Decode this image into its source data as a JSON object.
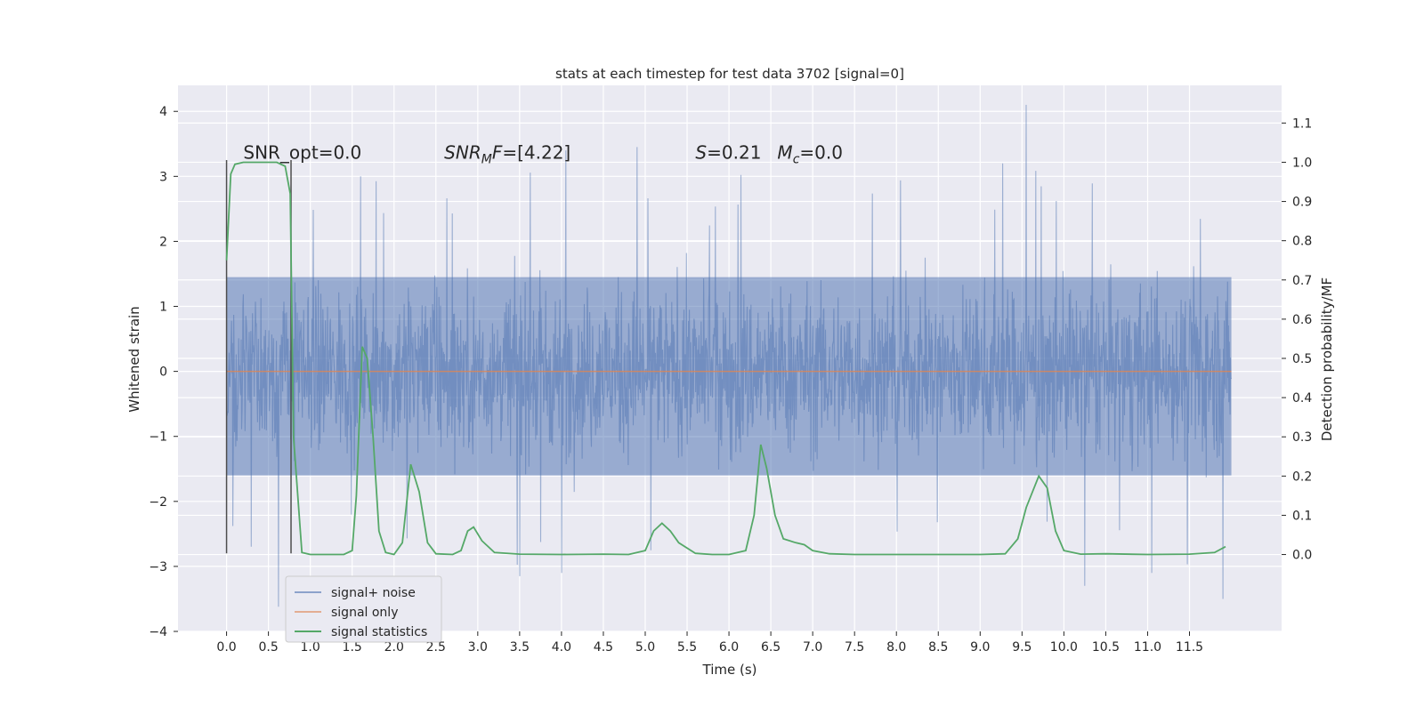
{
  "chart_data": {
    "type": "line",
    "title": "stats at each timestep for test data 3702 [signal=0]",
    "xlabel": "Time (s)",
    "ylabel": "Whitened strain",
    "y2label": "Detection probability/MF",
    "xlim": [
      -0.58,
      12.6
    ],
    "ylim": [
      -4.0,
      4.4
    ],
    "y2lim": [
      -0.196,
      1.196
    ],
    "x_ticks": [
      0.0,
      0.5,
      1.0,
      1.5,
      2.0,
      2.5,
      3.0,
      3.5,
      4.0,
      4.5,
      5.0,
      5.5,
      6.0,
      6.5,
      7.0,
      7.5,
      8.0,
      8.5,
      9.0,
      9.5,
      10.0,
      10.5,
      11.0,
      11.5
    ],
    "x_tick_labels": [
      "0.0",
      "0.5",
      "1.0",
      "1.5",
      "2.0",
      "2.5",
      "3.0",
      "3.5",
      "4.0",
      "4.5",
      "5.0",
      "5.5",
      "6.0",
      "6.5",
      "7.0",
      "7.5",
      "8.0",
      "8.5",
      "9.0",
      "9.5",
      "10.0",
      "10.5",
      "11.0",
      "11.5"
    ],
    "y_ticks": [
      -4,
      -3,
      -2,
      -1,
      0,
      1,
      2,
      3,
      4
    ],
    "y_tick_labels": [
      "−4",
      "−3",
      "−2",
      "−1",
      "0",
      "1",
      "2",
      "3",
      "4"
    ],
    "y2_ticks": [
      0.0,
      0.1,
      0.2,
      0.3,
      0.4,
      0.5,
      0.6,
      0.7,
      0.8,
      0.9,
      1.0,
      1.1
    ],
    "y2_tick_labels": [
      "0.0",
      "0.1",
      "0.2",
      "0.3",
      "0.4",
      "0.5",
      "0.6",
      "0.7",
      "0.8",
      "0.9",
      "1.0",
      "1.1"
    ],
    "grid": true,
    "legend_position": "lower-left",
    "series": [
      {
        "name": "signal+ noise",
        "axis": "left",
        "color": "#4c72b0",
        "description": "dense noisy whitened strain, roughly within -1.7..1.5 with spikes up to 4.1 and down to -3.6",
        "x_range": [
          0.0,
          12.0
        ],
        "spikes": [
          {
            "x": 0.62,
            "y": -3.62
          },
          {
            "x": 1.6,
            "y": 3.0
          },
          {
            "x": 3.5,
            "y": -3.15
          },
          {
            "x": 4.0,
            "y": -3.1
          },
          {
            "x": 4.05,
            "y": 3.4
          },
          {
            "x": 4.9,
            "y": 3.45
          },
          {
            "x": 9.27,
            "y": 3.2
          },
          {
            "x": 9.55,
            "y": 4.1
          },
          {
            "x": 10.25,
            "y": -3.3
          },
          {
            "x": 11.05,
            "y": -3.1
          },
          {
            "x": 11.9,
            "y": -3.5
          }
        ]
      },
      {
        "name": "signal only",
        "axis": "left",
        "color": "#dd8452",
        "x": [
          0.0,
          12.0
        ],
        "y": [
          0.0,
          0.0
        ]
      },
      {
        "name": "signal statistics",
        "axis": "right",
        "color": "#55a868",
        "x": [
          0.0,
          0.05,
          0.1,
          0.2,
          0.4,
          0.6,
          0.7,
          0.76,
          0.8,
          0.9,
          1.0,
          1.2,
          1.4,
          1.5,
          1.55,
          1.62,
          1.68,
          1.75,
          1.82,
          1.9,
          2.0,
          2.1,
          2.2,
          2.3,
          2.4,
          2.5,
          2.7,
          2.8,
          2.88,
          2.95,
          3.05,
          3.2,
          3.5,
          4.0,
          4.5,
          4.8,
          5.0,
          5.1,
          5.2,
          5.3,
          5.4,
          5.6,
          5.8,
          6.0,
          6.2,
          6.3,
          6.38,
          6.45,
          6.55,
          6.65,
          6.8,
          6.9,
          7.0,
          7.2,
          7.5,
          8.0,
          9.0,
          9.3,
          9.45,
          9.55,
          9.7,
          9.8,
          9.9,
          10.0,
          10.2,
          10.5,
          11.0,
          11.5,
          11.8,
          11.93
        ],
        "y": [
          0.75,
          0.97,
          0.995,
          1.0,
          1.0,
          1.0,
          0.99,
          0.92,
          0.3,
          0.005,
          0.0,
          0.0,
          0.0,
          0.01,
          0.15,
          0.53,
          0.5,
          0.3,
          0.06,
          0.005,
          0.0,
          0.03,
          0.23,
          0.16,
          0.03,
          0.002,
          0.0,
          0.01,
          0.06,
          0.07,
          0.035,
          0.005,
          0.001,
          0.0,
          0.001,
          0.0,
          0.01,
          0.06,
          0.08,
          0.06,
          0.03,
          0.003,
          0.0,
          0.0,
          0.01,
          0.1,
          0.28,
          0.22,
          0.1,
          0.04,
          0.03,
          0.025,
          0.01,
          0.002,
          0.0,
          0.0,
          0.0,
          0.002,
          0.04,
          0.12,
          0.2,
          0.17,
          0.06,
          0.01,
          0.001,
          0.002,
          0.0,
          0.001,
          0.005,
          0.02
        ]
      }
    ],
    "vertical_lines": [
      {
        "x": 0.0,
        "y_from": -2.8,
        "y_to": 3.25,
        "color": "#4d4d4d"
      },
      {
        "x": 0.77,
        "y_from": -2.8,
        "y_to": 3.25,
        "color": "#4d4d4d"
      }
    ],
    "annotations": [
      {
        "text": "SNR_opt=0.0",
        "x": 0.2,
        "y": 3.27
      },
      {
        "text": "SNR",
        "sub": "M",
        "rest": "F=[4.22]",
        "x": 2.6,
        "y": 3.27
      },
      {
        "text": "S",
        "rest": "=0.21   ",
        "m": "M",
        "sub2": "c",
        "rest2": "=0.0",
        "x": 5.6,
        "y": 3.27
      }
    ]
  }
}
